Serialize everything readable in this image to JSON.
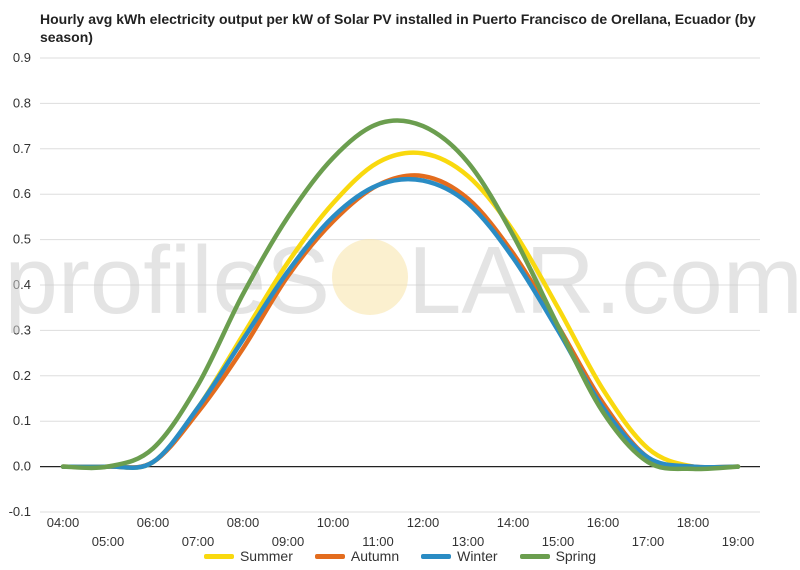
{
  "chart_data": {
    "type": "line",
    "title": "Hourly avg kWh electricity output per kW of Solar PV installed in Puerto Francisco de Orellana, Ecuador (by season)",
    "x": [
      "04:00",
      "05:00",
      "06:00",
      "07:00",
      "08:00",
      "09:00",
      "10:00",
      "11:00",
      "12:00",
      "13:00",
      "14:00",
      "15:00",
      "16:00",
      "17:00",
      "18:00",
      "19:00"
    ],
    "x_ticks_top": [
      "04:00",
      "06:00",
      "08:00",
      "10:00",
      "12:00",
      "14:00",
      "16:00",
      "18:00"
    ],
    "x_ticks_bottom": [
      "05:00",
      "07:00",
      "09:00",
      "11:00",
      "13:00",
      "15:00",
      "17:00",
      "19:00"
    ],
    "ylim": [
      -0.1,
      0.9
    ],
    "y_ticks": [
      "-0.1",
      "0.0",
      "0.1",
      "0.2",
      "0.3",
      "0.4",
      "0.5",
      "0.6",
      "0.7",
      "0.8",
      "0.9"
    ],
    "grid": true,
    "legend_position": "bottom",
    "series": [
      {
        "name": "Summer",
        "color": "#f9d90e",
        "values": [
          0.0,
          0.0,
          0.01,
          0.13,
          0.29,
          0.45,
          0.58,
          0.67,
          0.69,
          0.64,
          0.52,
          0.35,
          0.17,
          0.04,
          0.0,
          0.0
        ]
      },
      {
        "name": "Autumn",
        "color": "#e36c1e",
        "values": [
          0.0,
          0.0,
          0.01,
          0.12,
          0.26,
          0.42,
          0.54,
          0.62,
          0.64,
          0.59,
          0.47,
          0.31,
          0.14,
          0.02,
          0.0,
          0.0
        ]
      },
      {
        "name": "Winter",
        "color": "#2a8cc4",
        "values": [
          0.0,
          0.0,
          0.01,
          0.13,
          0.28,
          0.43,
          0.55,
          0.62,
          0.63,
          0.58,
          0.46,
          0.3,
          0.13,
          0.02,
          0.0,
          0.0
        ]
      },
      {
        "name": "Spring",
        "color": "#6b9e4f",
        "values": [
          0.0,
          0.0,
          0.04,
          0.18,
          0.38,
          0.55,
          0.68,
          0.755,
          0.75,
          0.67,
          0.51,
          0.31,
          0.12,
          0.01,
          -0.005,
          0.0
        ]
      }
    ]
  },
  "watermark": {
    "left": "profileS",
    "right": "LAR.com"
  }
}
